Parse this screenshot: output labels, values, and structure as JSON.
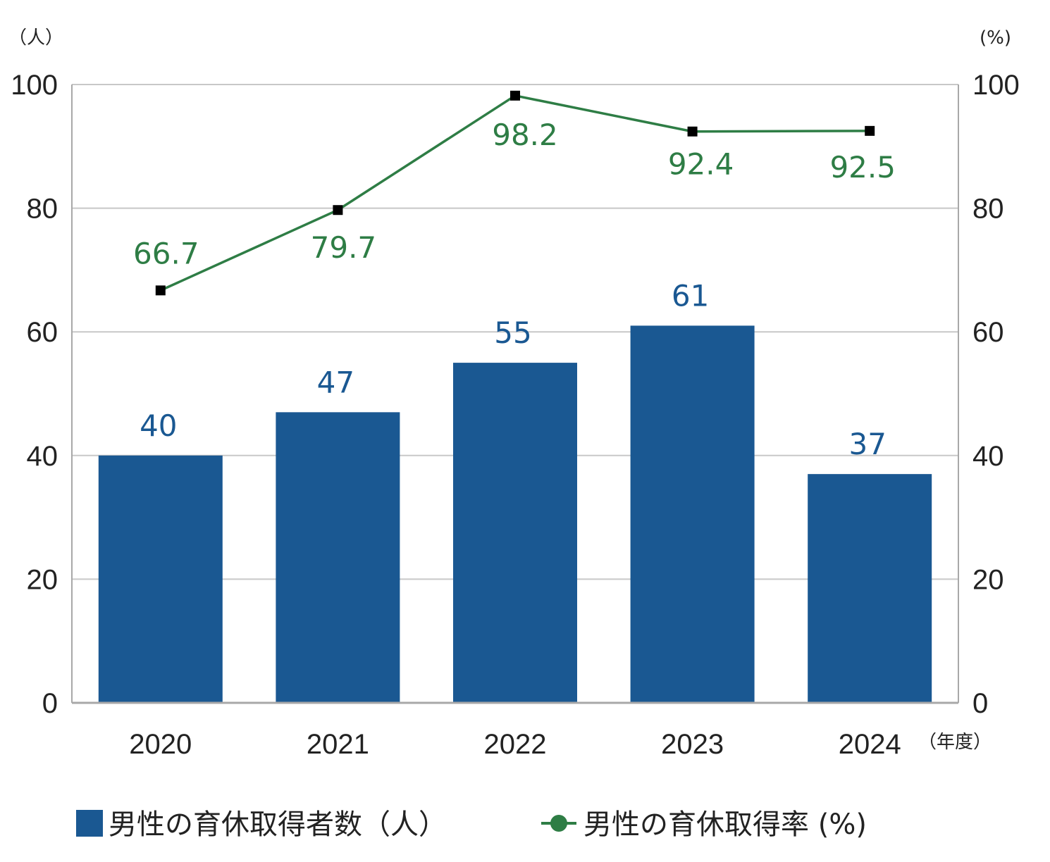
{
  "chart_data": {
    "type": "bar",
    "categories": [
      "2020",
      "2021",
      "2022",
      "2023",
      "2024"
    ],
    "series": [
      {
        "name": "男性の育休取得者数（人）",
        "type": "bar",
        "axis": "left",
        "values": [
          40,
          47,
          55,
          61,
          37
        ]
      },
      {
        "name": "男性の育休取得率 (%)",
        "type": "line",
        "axis": "right",
        "values": [
          66.7,
          79.7,
          98.2,
          92.4,
          92.5
        ]
      }
    ],
    "left_axis": {
      "unit": "（人）",
      "ylim": [
        0,
        100
      ],
      "ticks": [
        "0",
        "20",
        "40",
        "60",
        "80",
        "100"
      ]
    },
    "right_axis": {
      "unit": "(%)",
      "ylim": [
        0,
        100
      ],
      "ticks": [
        "0",
        "20",
        "40",
        "60",
        "80",
        "100"
      ]
    },
    "x_unit": "（年度）",
    "bar_labels": [
      "40",
      "47",
      "55",
      "61",
      "37"
    ],
    "line_labels": [
      "66.7",
      "79.7",
      "98.2",
      "92.4",
      "92.5"
    ],
    "grid": true,
    "legend_position": "bottom",
    "legend": {
      "bar_label": "男性の育休取得者数（人）",
      "line_label": "男性の育休取得率 (%)"
    },
    "colors": {
      "bar": "#1a5892",
      "line": "#2e7d45",
      "marker": "#000000",
      "grid": "#c8c8c8"
    }
  }
}
